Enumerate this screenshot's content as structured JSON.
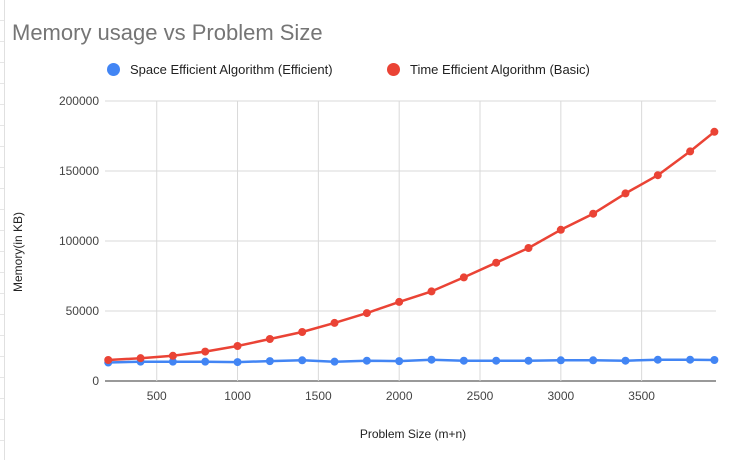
{
  "chart_data": {
    "type": "line",
    "title": "Memory usage vs Problem Size",
    "xlabel": "Problem Size (m+n)",
    "ylabel": "Memory(in KB)",
    "xlim": [
      180,
      3960
    ],
    "ylim": [
      0,
      200000
    ],
    "xticks": [
      500,
      1000,
      1500,
      2000,
      2500,
      3000,
      3500
    ],
    "yticks": [
      0,
      50000,
      100000,
      150000,
      200000
    ],
    "grid": true,
    "legend_position": "top",
    "x": [
      200,
      400,
      600,
      800,
      1000,
      1200,
      1400,
      1600,
      1800,
      2000,
      2200,
      2400,
      2600,
      2800,
      3000,
      3200,
      3400,
      3600,
      3800,
      3950
    ],
    "series": [
      {
        "name": "Space Efficient Algorithm (Efficient)",
        "color": "#4285f4",
        "values": [
          13200,
          13800,
          13800,
          13800,
          13500,
          14200,
          14800,
          13800,
          14500,
          14200,
          15200,
          14500,
          14500,
          14500,
          14800,
          14800,
          14500,
          15200,
          15200,
          15000
        ]
      },
      {
        "name": "Time Efficient Algorithm (Basic)",
        "color": "#ea4335",
        "values": [
          15000,
          16300,
          18000,
          21000,
          25000,
          30000,
          35000,
          41500,
          48500,
          56500,
          64000,
          74000,
          84500,
          95000,
          108000,
          119500,
          134000,
          147000,
          164000,
          178000
        ]
      }
    ]
  }
}
